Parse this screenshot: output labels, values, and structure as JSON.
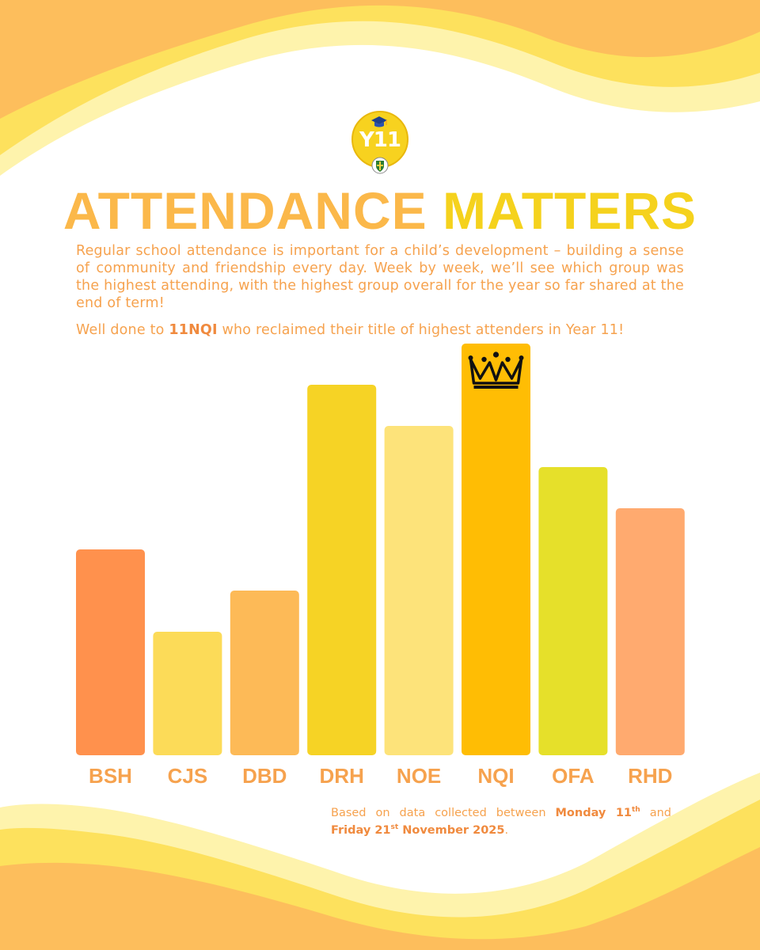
{
  "title": {
    "part1": "ATTENDANCE",
    "part2": "MATTERS"
  },
  "logo": {
    "text": "Y11"
  },
  "intro": "Regular school attendance is important for a child’s development – building a sense of community and friendship every day. Week by week, we’ll see which group was the highest attending, with the highest group overall for the year so far shared at the end of term!",
  "well_done": {
    "prefix": "Well done to ",
    "group": "11NQI",
    "suffix": " who reclaimed their title of highest attenders in Year 11!"
  },
  "footer": {
    "part1": "Based on data collected between ",
    "start_day": "Monday 11",
    "start_sup": "th",
    "part2": " and ",
    "end_day": "Friday 21",
    "end_sup": "st",
    "end_rest": " November 2025",
    "period": "."
  },
  "chart_data": {
    "type": "bar",
    "title": "ATTENDANCE MATTERS",
    "categories": [
      "BSH",
      "CJS",
      "DBD",
      "DRH",
      "NOE",
      "NQI",
      "OFA",
      "RHD"
    ],
    "values": [
      2.5,
      1.5,
      2.0,
      4.5,
      4.0,
      5.0,
      3.5,
      3.0
    ],
    "colors": [
      "#ff914d",
      "#fcdb58",
      "#fdba57",
      "#f6d325",
      "#fde37a",
      "#ffbd04",
      "#e6e02a",
      "#ffaa6f"
    ],
    "label_color": "#f6a24e",
    "highlight": "NQI",
    "highlight_icon": "crown-icon",
    "axis": "none",
    "grid": false,
    "ylim": [
      0,
      5
    ]
  }
}
